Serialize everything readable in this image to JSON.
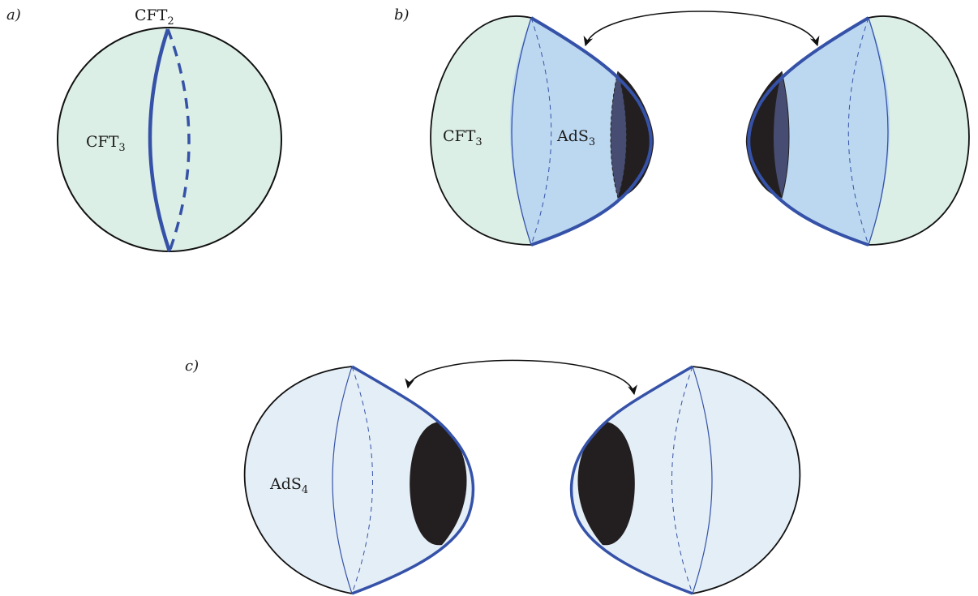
{
  "panels": {
    "a": {
      "letter": "a)",
      "top_label": "CFT",
      "top_label_sub": "2",
      "region_label": "CFT",
      "region_label_sub": "3"
    },
    "b": {
      "letter": "b)",
      "left_label": "CFT",
      "left_label_sub": "3",
      "middle_label": "AdS",
      "middle_label_sub": "3"
    },
    "c": {
      "letter": "c)",
      "region_label": "AdS",
      "region_label_sub": "4"
    }
  },
  "colors": {
    "cft_fill": "#dcefe6",
    "ads3_fill": "#bcd8f0",
    "ads4_fill": "#e4eef6",
    "boundary_blue": "#3552a8",
    "horizon_black": "#231f20",
    "horizon_slate": "#474d72",
    "outline": "#111111"
  }
}
